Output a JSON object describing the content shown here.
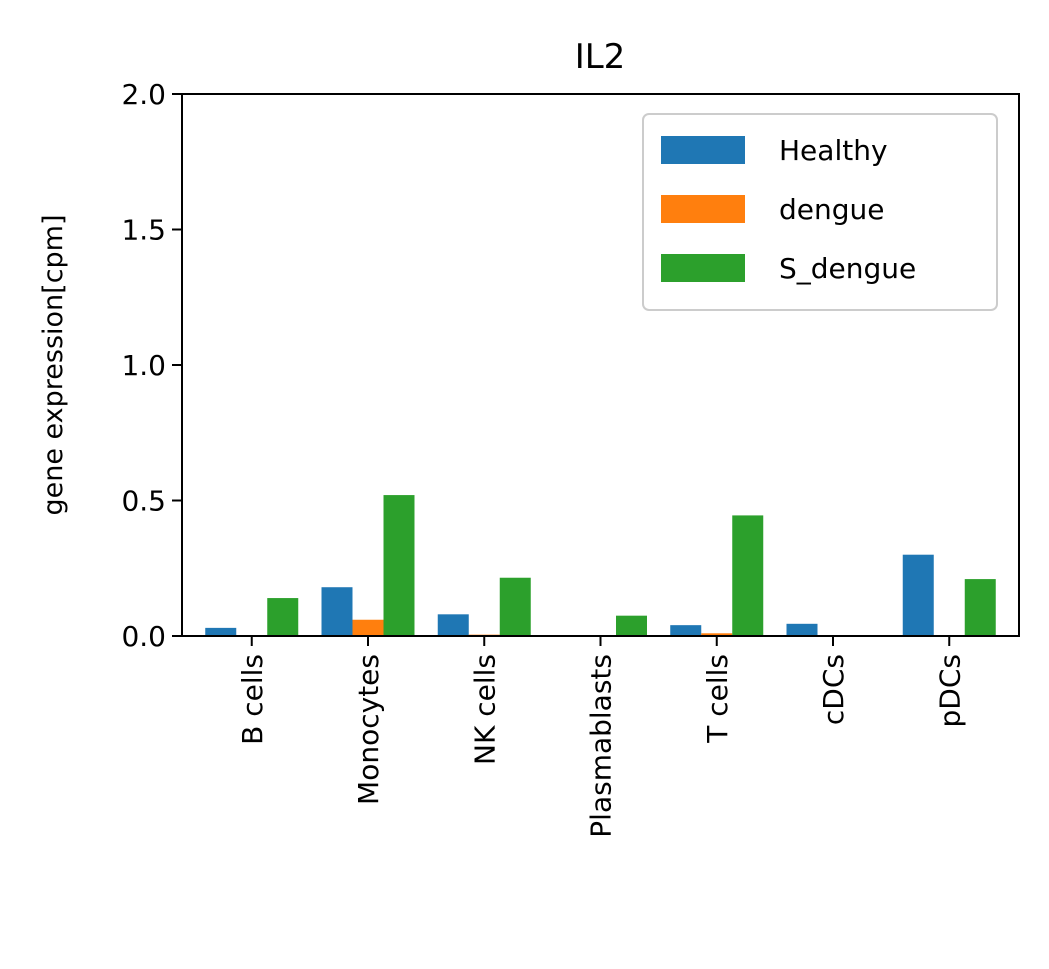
{
  "chart_data": {
    "type": "bar",
    "title": "IL2",
    "xlabel": "",
    "ylabel": "gene expression[cpm]",
    "ylim": [
      0,
      2.0
    ],
    "yticks": [
      "0.0",
      "0.5",
      "1.0",
      "1.5",
      "2.0"
    ],
    "ytick_values": [
      0,
      0.5,
      1.0,
      1.5,
      2.0
    ],
    "categories": [
      "B cells",
      "Monocytes",
      "NK cells",
      "Plasmablasts",
      "T cells",
      "cDCs",
      "pDCs"
    ],
    "series": [
      {
        "name": "Healthy",
        "color": "#1f77b4",
        "values": [
          0.03,
          0.18,
          0.08,
          0.0,
          0.04,
          0.045,
          0.3
        ]
      },
      {
        "name": "dengue",
        "color": "#ff7f0e",
        "values": [
          0.0,
          0.06,
          0.005,
          0.0,
          0.01,
          0.0,
          0.0
        ]
      },
      {
        "name": "S_dengue",
        "color": "#2ca02c",
        "values": [
          0.14,
          0.52,
          0.215,
          0.075,
          0.445,
          0.0,
          0.21
        ]
      }
    ],
    "legend": {
      "placement": "top-right"
    },
    "grid": false
  }
}
